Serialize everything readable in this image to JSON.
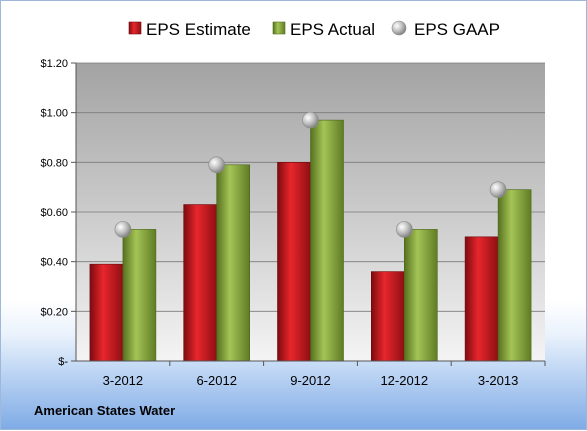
{
  "chart_data": {
    "type": "bar",
    "categories": [
      "3-2012",
      "6-2012",
      "9-2012",
      "12-2012",
      "3-2013"
    ],
    "series": [
      {
        "name": "EPS Estimate",
        "type": "bar",
        "color": "#c0161c",
        "values": [
          0.39,
          0.63,
          0.8,
          0.36,
          0.5
        ]
      },
      {
        "name": "EPS Actual",
        "type": "bar",
        "color": "#7fa23a",
        "values": [
          0.53,
          0.79,
          0.97,
          0.53,
          0.69
        ]
      },
      {
        "name": "EPS GAAP",
        "type": "marker",
        "color": "#b4b4b4",
        "values": [
          0.53,
          0.79,
          0.97,
          0.53,
          0.69
        ]
      }
    ],
    "ylim": [
      0,
      1.2
    ],
    "yticks": [
      0,
      0.2,
      0.4,
      0.6,
      0.8,
      1.0,
      1.2
    ],
    "ytick_labels": [
      "$-",
      "$0.20",
      "$0.40",
      "$0.60",
      "$0.80",
      "$1.00",
      "$1.20"
    ],
    "grid": true,
    "legend_position": "top"
  },
  "footer": {
    "company": "American States Water"
  }
}
